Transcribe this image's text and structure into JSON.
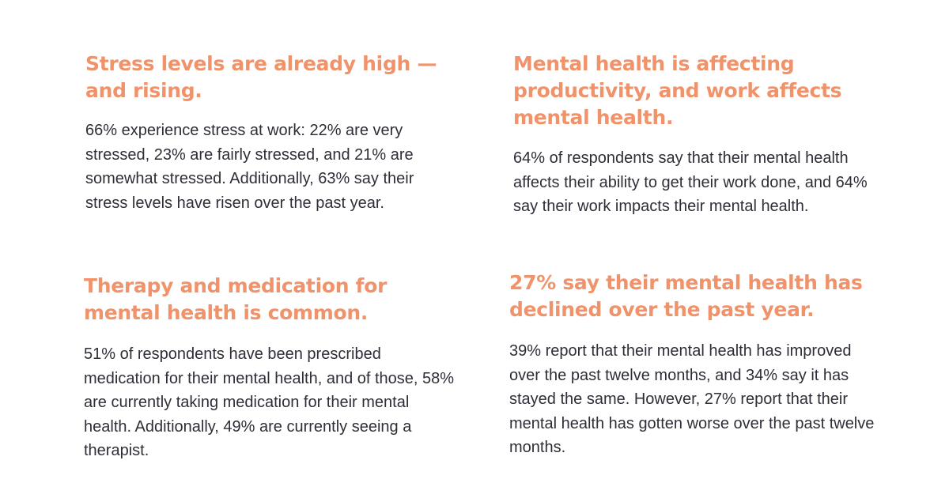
{
  "cards": [
    {
      "heading": "Stress levels are already high — and rising.",
      "body": "66% experience stress at work: 22% are very stressed, 23% are fairly stressed, and 21% are somewhat stressed. Additionally, 63% say their stress levels have risen over the past year."
    },
    {
      "heading": "Mental health is affecting productivity, and work affects mental health.",
      "body": "64% of respondents say that their mental health affects their ability to get their work done, and 64% say their work impacts their mental health."
    },
    {
      "heading": "Therapy and medication for mental health is common.",
      "body": "51% of respondents have been prescribed medication for their mental health, and of those, 58% are currently taking medication for their mental health. Additionally, 49% are currently seeing a therapist."
    },
    {
      "heading": "27% say their mental health has declined over the past year.",
      "body": "39% report that their mental health has improved over the past twelve months, and 34% say it has stayed the same. However, 27% report that their mental health has gotten worse over the past twelve months."
    }
  ],
  "colors": {
    "heading": "#F0926A",
    "body": "#2E2E38",
    "background": "#FFFFFF"
  }
}
